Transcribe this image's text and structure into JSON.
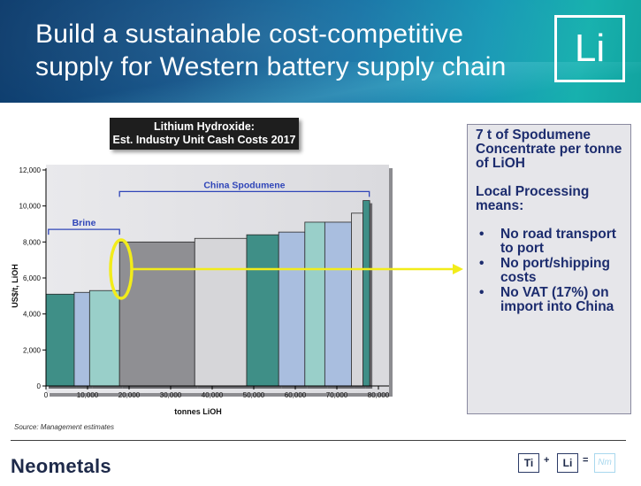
{
  "header": {
    "title_line1": "Build a sustainable cost-competitive",
    "title_line2": "supply for Western battery supply chain",
    "element_symbol": "Li"
  },
  "chart_title": {
    "line1": "Lithium Hydroxide:",
    "line2": "Est. Industry Unit Cash Costs 2017"
  },
  "chart_data": {
    "type": "bar",
    "xlabel": "tonnes LiOH",
    "ylabel": "US$/t, LiOH",
    "xlim": [
      0,
      80000
    ],
    "ylim": [
      0,
      12000
    ],
    "x_ticks": [
      "0",
      "10,000",
      "20,000",
      "30,000",
      "40,000",
      "50,000",
      "60,000",
      "70,000",
      "80,000"
    ],
    "y_ticks": [
      "0",
      "2,000",
      "4,000",
      "6,000",
      "8,000",
      "10,000",
      "12,000"
    ],
    "grid": false,
    "bars": [
      {
        "x_start": 0,
        "x_end": 6800,
        "value": 5100,
        "color": "#3f8f87"
      },
      {
        "x_start": 6800,
        "x_end": 10500,
        "value": 5200,
        "color": "#a9bedf"
      },
      {
        "x_start": 10500,
        "x_end": 17700,
        "value": 5300,
        "color": "#99cfc9"
      },
      {
        "x_start": 17700,
        "x_end": 35800,
        "value": 8000,
        "color": "#8f8f93"
      },
      {
        "x_start": 35800,
        "x_end": 48300,
        "value": 8200,
        "color": "#d6d6d9"
      },
      {
        "x_start": 48300,
        "x_end": 56000,
        "value": 8400,
        "color": "#3f8f87"
      },
      {
        "x_start": 56000,
        "x_end": 62300,
        "value": 8550,
        "color": "#a9bedf"
      },
      {
        "x_start": 62300,
        "x_end": 67100,
        "value": 9100,
        "color": "#99cfc9"
      },
      {
        "x_start": 67100,
        "x_end": 73500,
        "value": 9100,
        "color": "#a9bedf"
      },
      {
        "x_start": 73500,
        "x_end": 76300,
        "value": 9600,
        "color": "#d6d6d9"
      },
      {
        "x_start": 76300,
        "x_end": 77900,
        "value": 10300,
        "color": "#3f8f87"
      }
    ],
    "annotations": [
      {
        "label": "Brine",
        "x_start": 600,
        "x_end": 17700,
        "y": 8700
      },
      {
        "label": "China Spodumene",
        "x_start": 17700,
        "x_end": 77800,
        "y": 10800
      }
    ],
    "highlight": {
      "x": 17700,
      "y": 6500
    }
  },
  "source": "Source:  Management estimates",
  "callout": {
    "heading1": "7 t of Spodumene Concentrate per tonne of LiOH",
    "heading2": "Local Processing means:",
    "bullets": [
      "No road transport to port",
      "No port/shipping costs",
      "No VAT (17%) on import into China"
    ],
    "bullet_char": "•"
  },
  "footer": {
    "company": "Neometals",
    "eq": {
      "a": "Ti",
      "plus": "+",
      "b": "Li",
      "equals": "=",
      "c": "Nm"
    }
  },
  "colors": {
    "banner": "#0d4f86",
    "arrow": "#f2ec1a",
    "callout_text": "#1c2c6e",
    "bracket": "#2f45b8"
  }
}
